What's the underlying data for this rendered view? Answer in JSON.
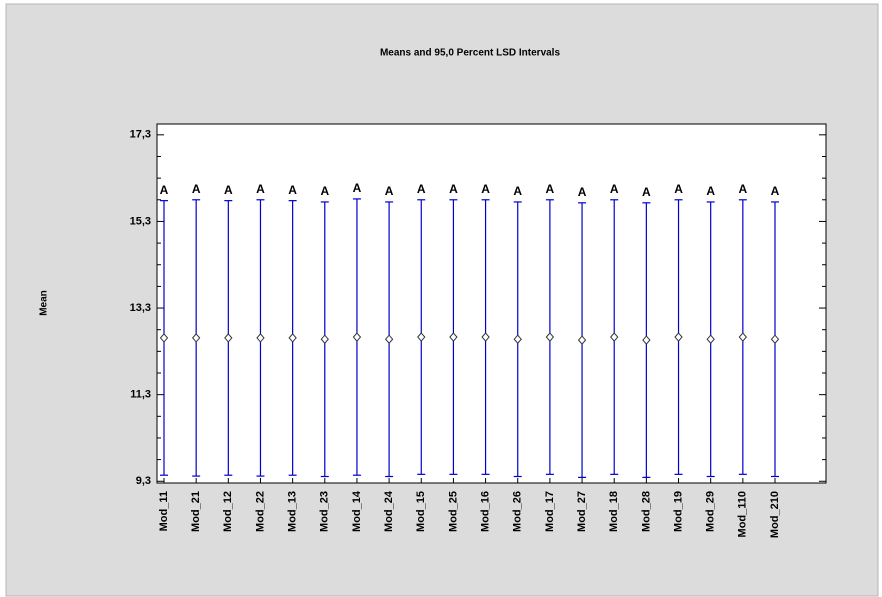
{
  "chart_data": {
    "type": "errorbar",
    "title": "Means and 95,0 Percent LSD Intervals",
    "y_label": "Mean",
    "categories": [
      "Mod_11",
      "Mod_21",
      "Mod_12",
      "Mod_22",
      "Mod_13",
      "Mod_23",
      "Mod_14",
      "Mod_24",
      "Mod_15",
      "Mod_25",
      "Mod_16",
      "Mod_26",
      "Mod_17",
      "Mod_27",
      "Mod_18",
      "Mod_28",
      "Mod_19",
      "Mod_29",
      "Mod_110",
      "Mod_210"
    ],
    "values": [
      12.61,
      12.61,
      12.61,
      12.61,
      12.61,
      12.58,
      12.63,
      12.58,
      12.63,
      12.63,
      12.63,
      12.58,
      12.63,
      12.56,
      12.63,
      12.56,
      12.63,
      12.58,
      12.63,
      12.58
    ],
    "errors": [
      3.17,
      3.19,
      3.17,
      3.19,
      3.17,
      3.17,
      3.19,
      3.17,
      3.17,
      3.17,
      3.17,
      3.17,
      3.17,
      3.17,
      3.17,
      3.17,
      3.17,
      3.17,
      3.17,
      3.17
    ],
    "group_labels": [
      "A",
      "A",
      "A",
      "A",
      "A",
      "A",
      "A",
      "A",
      "A",
      "A",
      "A",
      "A",
      "A",
      "A",
      "A",
      "A",
      "A",
      "A",
      "A",
      "A"
    ],
    "color": "#0000cc",
    "ylim": [
      9.26,
      17.55
    ],
    "yticks": [
      {
        "value": 9.3,
        "label": "9,3"
      },
      {
        "value": 11.3,
        "label": "11,3"
      },
      {
        "value": 13.3,
        "label": "13,3"
      },
      {
        "value": 15.3,
        "label": "15,3"
      },
      {
        "value": 17.3,
        "label": "17,3"
      }
    ],
    "minor_yticks": [
      9.8,
      10.3,
      10.8,
      11.8,
      12.3,
      12.8,
      13.8,
      14.3,
      14.8,
      15.8,
      16.3,
      16.8
    ]
  }
}
